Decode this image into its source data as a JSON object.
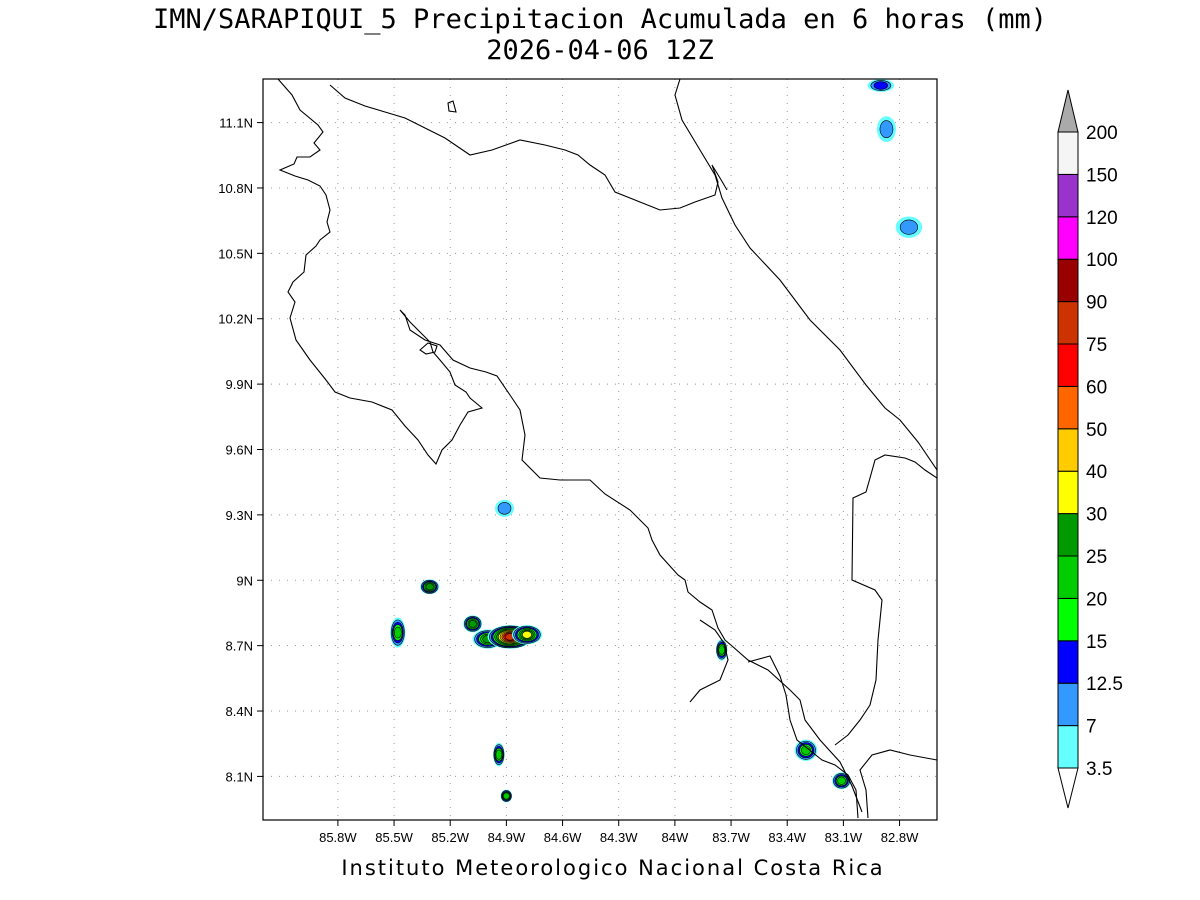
{
  "title": {
    "line1": "IMN/SARAPIQUI_5 Precipitacion Acumulada en 6 horas (mm)",
    "line2": "2026-04-06 12Z"
  },
  "footer": "Instituto Meteorologico Nacional Costa Rica",
  "map": {
    "lon_range": [
      -86.2,
      -82.6
    ],
    "lat_range": [
      7.9,
      11.3
    ],
    "lat_ticks": [
      {
        "value": 11.1,
        "label": "11.1N"
      },
      {
        "value": 10.8,
        "label": "10.8N"
      },
      {
        "value": 10.5,
        "label": "10.5N"
      },
      {
        "value": 10.2,
        "label": "10.2N"
      },
      {
        "value": 9.9,
        "label": "9.9N"
      },
      {
        "value": 9.6,
        "label": "9.6N"
      },
      {
        "value": 9.3,
        "label": "9.3N"
      },
      {
        "value": 9.0,
        "label": "9N"
      },
      {
        "value": 8.7,
        "label": "8.7N"
      },
      {
        "value": 8.4,
        "label": "8.4N"
      },
      {
        "value": 8.1,
        "label": "8.1N"
      }
    ],
    "lon_ticks": [
      {
        "value": -85.8,
        "label": "85.8W"
      },
      {
        "value": -85.5,
        "label": "85.5W"
      },
      {
        "value": -85.2,
        "label": "85.2W"
      },
      {
        "value": -84.9,
        "label": "84.9W"
      },
      {
        "value": -84.6,
        "label": "84.6W"
      },
      {
        "value": -84.3,
        "label": "84.3W"
      },
      {
        "value": -84.0,
        "label": "84W"
      },
      {
        "value": -83.7,
        "label": "83.7W"
      },
      {
        "value": -83.4,
        "label": "83.4W"
      },
      {
        "value": -83.1,
        "label": "83.1W"
      },
      {
        "value": -82.8,
        "label": "82.8W"
      }
    ],
    "grid": "dotted",
    "coastline_color": "#000000"
  },
  "colorbar": {
    "labels": [
      "3.5",
      "7",
      "12.5",
      "15",
      "20",
      "25",
      "30",
      "40",
      "50",
      "60",
      "75",
      "90",
      "100",
      "120",
      "150",
      "200"
    ],
    "colors": [
      "#66ffff",
      "#3399ff",
      "#0000ff",
      "#00ff00",
      "#00cc00",
      "#009900",
      "#ffff00",
      "#ffcc00",
      "#ff6600",
      "#ff0000",
      "#cc3300",
      "#990000",
      "#ff00ff",
      "#9933cc",
      "#f5f5f5",
      "#aaaaaa"
    ]
  },
  "precip_cells": [
    {
      "lon": -85.48,
      "lat": 8.76,
      "rx": 0.03,
      "ry": 0.06,
      "level": 4
    },
    {
      "lon": -85.31,
      "lat": 8.97,
      "rx": 0.04,
      "ry": 0.025,
      "level": 5
    },
    {
      "lon": -85.08,
      "lat": 8.8,
      "rx": 0.04,
      "ry": 0.03,
      "level": 5
    },
    {
      "lon": -85.0,
      "lat": 8.73,
      "rx": 0.07,
      "ry": 0.035,
      "level": 5
    },
    {
      "lon": -84.88,
      "lat": 8.74,
      "rx": 0.11,
      "ry": 0.045,
      "level": 10
    },
    {
      "lon": -84.79,
      "lat": 8.75,
      "rx": 0.07,
      "ry": 0.035,
      "level": 6
    },
    {
      "lon": -84.91,
      "lat": 9.33,
      "rx": 0.04,
      "ry": 0.03,
      "level": 1
    },
    {
      "lon": -84.94,
      "lat": 8.2,
      "rx": 0.02,
      "ry": 0.045,
      "level": 4
    },
    {
      "lon": -84.9,
      "lat": 8.01,
      "rx": 0.02,
      "ry": 0.02,
      "level": 4
    },
    {
      "lon": -83.75,
      "lat": 8.68,
      "rx": 0.02,
      "ry": 0.04,
      "level": 4
    },
    {
      "lon": -83.3,
      "lat": 8.22,
      "rx": 0.05,
      "ry": 0.04,
      "level": 4
    },
    {
      "lon": -83.11,
      "lat": 8.08,
      "rx": 0.04,
      "ry": 0.03,
      "level": 4
    },
    {
      "lon": -82.9,
      "lat": 11.27,
      "rx": 0.06,
      "ry": 0.02,
      "level": 2
    },
    {
      "lon": -82.87,
      "lat": 11.07,
      "rx": 0.04,
      "ry": 0.05,
      "level": 1
    },
    {
      "lon": -82.75,
      "lat": 10.62,
      "rx": 0.06,
      "ry": 0.04,
      "level": 1
    }
  ]
}
